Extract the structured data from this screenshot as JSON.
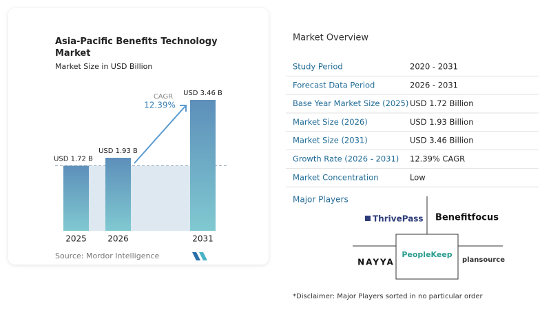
{
  "chart_data": {
    "type": "bar",
    "title": "Asia-Pacific Benefits Technology Market",
    "subtitle": "Market Size in USD Billion",
    "categories": [
      "2025",
      "2026",
      "2031"
    ],
    "values": [
      1.72,
      1.93,
      3.46
    ],
    "value_labels": [
      "USD 1.72 B",
      "USD 1.93 B",
      "USD 3.46 B"
    ],
    "annotation": {
      "label": "CAGR",
      "text": "12.39%"
    },
    "source": "Source: Mordor Intelligence",
    "colors": [
      "#5d8fba",
      "#80c9d1"
    ]
  },
  "overview": {
    "title": "Market Overview",
    "rows": [
      [
        "Study Period",
        "2020 - 2031"
      ],
      [
        "Forecast Data Period",
        "2026 - 2031"
      ],
      [
        "Base Year Market Size (2025)",
        "USD 1.72 Billion"
      ],
      [
        "Market Size (2026)",
        "USD 1.93 Billion"
      ],
      [
        "Market Size (2031)",
        "USD 3.46 Billion"
      ],
      [
        "Growth Rate (2026 - 2031)",
        "12.39% CAGR"
      ],
      [
        "Market Concentration",
        "Low"
      ]
    ]
  },
  "players": {
    "title": "Major Players",
    "names": [
      "ThrivePass",
      "Benefitfocus",
      "NAYYA",
      "PeopleKeep",
      "plansource"
    ]
  },
  "disclaimer": "*Disclaimer: Major Players sorted in no particular order"
}
